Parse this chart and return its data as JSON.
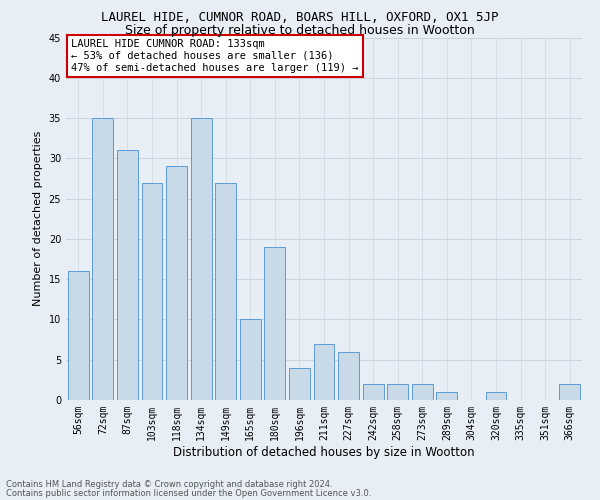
{
  "title": "LAUREL HIDE, CUMNOR ROAD, BOARS HILL, OXFORD, OX1 5JP",
  "subtitle": "Size of property relative to detached houses in Wootton",
  "xlabel": "Distribution of detached houses by size in Wootton",
  "ylabel": "Number of detached properties",
  "footer1": "Contains HM Land Registry data © Crown copyright and database right 2024.",
  "footer2": "Contains public sector information licensed under the Open Government Licence v3.0.",
  "annotation_title": "LAUREL HIDE CUMNOR ROAD: 133sqm",
  "annotation_line2": "← 53% of detached houses are smaller (136)",
  "annotation_line3": "47% of semi-detached houses are larger (119) →",
  "categories": [
    "56sqm",
    "72sqm",
    "87sqm",
    "103sqm",
    "118sqm",
    "134sqm",
    "149sqm",
    "165sqm",
    "180sqm",
    "196sqm",
    "211sqm",
    "227sqm",
    "242sqm",
    "258sqm",
    "273sqm",
    "289sqm",
    "304sqm",
    "320sqm",
    "335sqm",
    "351sqm",
    "366sqm"
  ],
  "values": [
    16,
    35,
    31,
    27,
    29,
    35,
    27,
    10,
    19,
    4,
    7,
    6,
    2,
    2,
    2,
    1,
    0,
    1,
    0,
    0,
    2
  ],
  "bar_color": "#c8d9e8",
  "bar_edge_color": "#5b9bd5",
  "ylim": [
    0,
    45
  ],
  "yticks": [
    0,
    5,
    10,
    15,
    20,
    25,
    30,
    35,
    40,
    45
  ],
  "grid_color": "#c8d0dc",
  "bg_color": "#e8eef5",
  "title_fontsize": 9,
  "subtitle_fontsize": 9,
  "ylabel_fontsize": 8,
  "xlabel_fontsize": 8.5,
  "tick_fontsize": 7,
  "annotation_box_color": "#ffffff",
  "annotation_box_edge": "#cc0000",
  "annotation_fontsize": 7.5,
  "footer_fontsize": 6,
  "footer_color": "#555555"
}
